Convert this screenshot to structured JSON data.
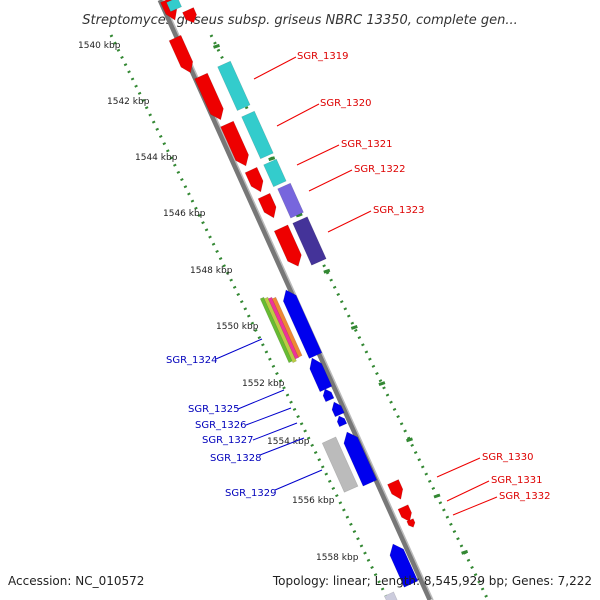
{
  "title": "Streptomyces griseus subsp. griseus NBRC 13350, complete gen...",
  "footer": {
    "accession": "Accession: NC_010572",
    "topology": "Topology: linear; Length: 8,545,929 bp; Genes: 7,222"
  },
  "kbp_ticks": [
    "1540 kbp",
    "1542 kbp",
    "1544 kbp",
    "1546 kbp",
    "1548 kbp",
    "1550 kbp",
    "1552 kbp",
    "1554 kbp",
    "1556 kbp",
    "1558 kbp"
  ],
  "gene_labels_right": [
    {
      "text": "SGR_1319",
      "color": "#dd0000"
    },
    {
      "text": "SGR_1320",
      "color": "#dd0000"
    },
    {
      "text": "SGR_1321",
      "color": "#dd0000"
    },
    {
      "text": "SGR_1322",
      "color": "#dd0000"
    },
    {
      "text": "SGR_1323",
      "color": "#dd0000"
    },
    {
      "text": "SGR_1330",
      "color": "#dd0000"
    },
    {
      "text": "SGR_1331",
      "color": "#dd0000"
    },
    {
      "text": "SGR_1332",
      "color": "#dd0000"
    }
  ],
  "gene_labels_left": [
    {
      "text": "SGR_1324",
      "color": "#0000bb"
    },
    {
      "text": "SGR_1325",
      "color": "#0000bb"
    },
    {
      "text": "SGR_1326",
      "color": "#0000bb"
    },
    {
      "text": "SGR_1327",
      "color": "#0000bb"
    },
    {
      "text": "SGR_1328",
      "color": "#0000bb"
    },
    {
      "text": "SGR_1329",
      "color": "#0000bb"
    }
  ],
  "colors": {
    "forward_gene": "#ee0000",
    "reverse_gene": "#0000ee",
    "teal_feature": "#33cccc",
    "purple_feature": "#7766dd",
    "dark_purple_feature": "#443399",
    "grey_feature": "#bbbbbb",
    "tick_dots": "#338833",
    "backbone": "#888888"
  }
}
